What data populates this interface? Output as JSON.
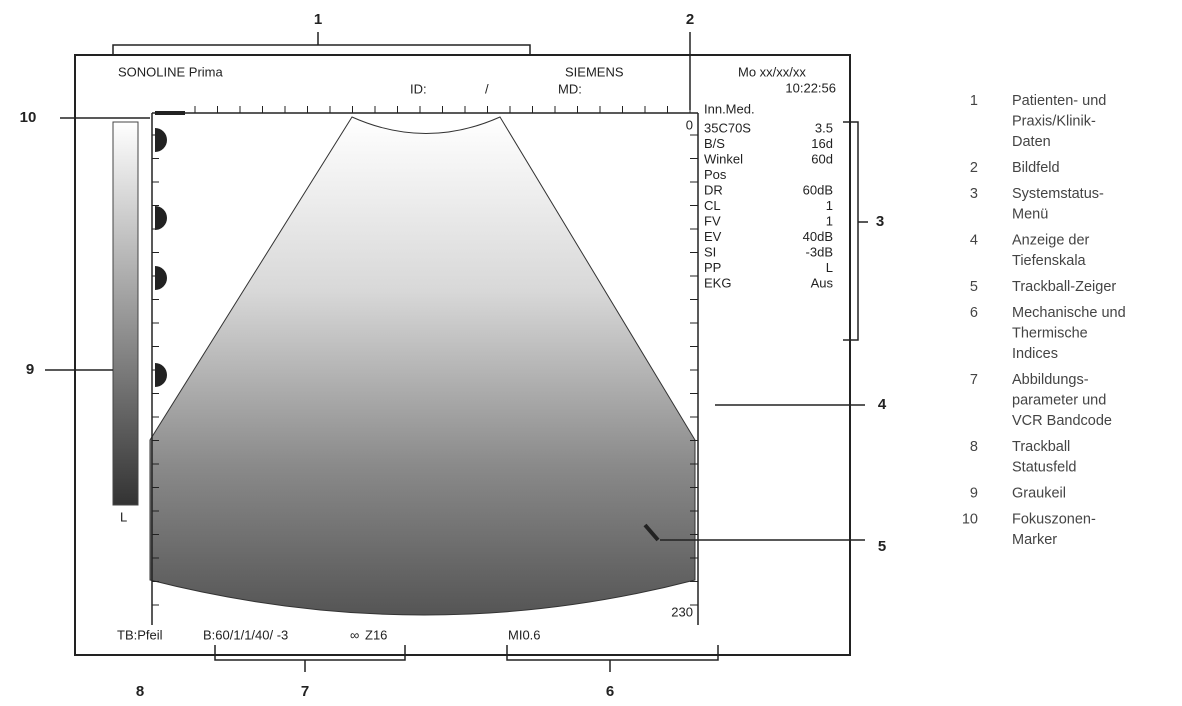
{
  "screen": {
    "title": "SONOLINE Prima",
    "brand": "SIEMENS",
    "date": "Mo xx/xx/xx",
    "time": "10:22:56",
    "id_label": "ID:",
    "id_separator": "/",
    "md_label": "MD:",
    "preset": "Inn.Med.",
    "depth_top": "0",
    "depth_bottom": "230",
    "gray_label": "L",
    "params": [
      {
        "label": "35C70S",
        "value": "3.5"
      },
      {
        "label": "B/S",
        "value": "16d"
      },
      {
        "label": "Winkel",
        "value": "60d"
      },
      {
        "label": "Pos"
      },
      {
        "label": "DR",
        "value": "60dB"
      },
      {
        "label": "CL",
        "value": "1"
      },
      {
        "label": "FV",
        "value": "1"
      },
      {
        "label": "EV",
        "value": "40dB"
      },
      {
        "label": "SI",
        "value": "-3dB"
      },
      {
        "label": "PP",
        "value": "L"
      },
      {
        "label": "EKG",
        "value": "Aus"
      }
    ],
    "status": {
      "trackball": "TB:Pfeil",
      "imaging": "B:60/1/1/40/ -3",
      "vcr": "Z16",
      "index": "MI0.6"
    }
  },
  "callouts": [
    "1",
    "2",
    "3",
    "4",
    "5",
    "6",
    "7",
    "8",
    "9",
    "10"
  ],
  "legend": [
    {
      "number": "1",
      "lines": [
        "Patienten- und",
        "Praxis/Klinik-",
        "Daten"
      ]
    },
    {
      "number": "2",
      "lines": [
        "Bildfeld"
      ]
    },
    {
      "number": "3",
      "lines": [
        "Systemstatus-",
        "Menü"
      ]
    },
    {
      "number": "4",
      "lines": [
        "Anzeige der",
        "Tiefenskala"
      ]
    },
    {
      "number": "5",
      "lines": [
        "Trackball-Zeiger"
      ]
    },
    {
      "number": "6",
      "lines": [
        "Mechanische und",
        "Thermische",
        "Indices"
      ]
    },
    {
      "number": "7",
      "lines": [
        "Abbildungs-",
        "parameter und",
        "VCR Bandcode"
      ]
    },
    {
      "number": "8",
      "lines": [
        "Trackball",
        "Statusfeld"
      ]
    },
    {
      "number": "9",
      "lines": [
        "Graukeil"
      ]
    },
    {
      "number": "10",
      "lines": [
        "Fokuszonen-",
        "Marker"
      ]
    }
  ]
}
